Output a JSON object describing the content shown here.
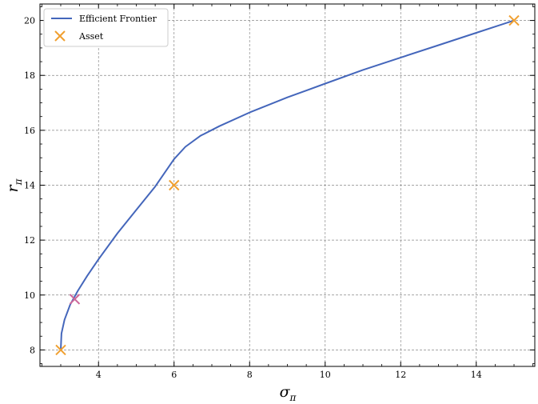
{
  "chart_data": {
    "type": "line",
    "title": "",
    "xlabel": "σ",
    "xlabel_sub": "π",
    "ylabel": "r",
    "ylabel_sub": "π",
    "xlim": [
      2.45,
      15.55
    ],
    "ylim": [
      7.4,
      20.6
    ],
    "xticks": [
      4,
      6,
      8,
      10,
      12,
      14
    ],
    "yticks": [
      8,
      10,
      12,
      14,
      16,
      18,
      20
    ],
    "grid": true,
    "legend_position": "top-left",
    "series": [
      {
        "name": "Efficient Frontier",
        "kind": "line",
        "color": "#4466bb",
        "x": [
          3.0,
          3.02,
          3.1,
          3.25,
          3.45,
          3.7,
          4.0,
          4.5,
          5.0,
          5.5,
          6.0,
          6.3,
          6.7,
          7.2,
          8.0,
          9.0,
          10.0,
          11.0,
          12.0,
          13.0,
          14.0,
          15.0
        ],
        "y": [
          8.0,
          8.6,
          9.1,
          9.65,
          10.15,
          10.7,
          11.3,
          12.25,
          13.1,
          13.95,
          14.95,
          15.4,
          15.8,
          16.15,
          16.65,
          17.2,
          17.7,
          18.2,
          18.65,
          19.1,
          19.55,
          20.0
        ]
      },
      {
        "name": "Asset",
        "kind": "scatter",
        "color": "#f0a030",
        "x": [
          3.0,
          6.0,
          15.0
        ],
        "y": [
          8.0,
          14.0,
          20.0
        ]
      },
      {
        "name": "",
        "kind": "scatter",
        "color": "#cc6699",
        "x": [
          3.37
        ],
        "y": [
          9.85
        ]
      }
    ]
  }
}
